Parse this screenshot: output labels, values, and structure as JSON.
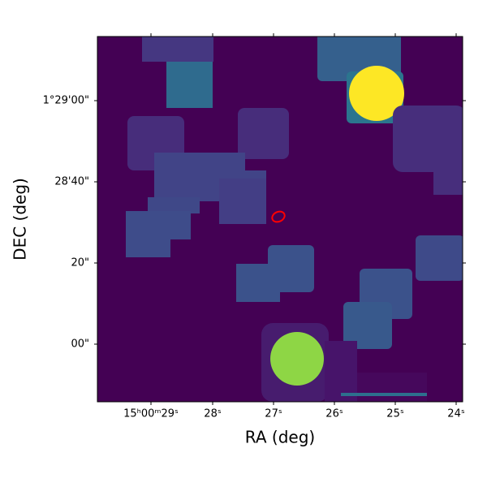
{
  "chart_data": {
    "type": "image",
    "xlabel": "RA (deg)",
    "ylabel": "DEC (deg)",
    "xticks": [
      "15ʰ00ᵐ29ˢ",
      "28ˢ",
      "27ˢ",
      "26ˢ",
      "25ˢ",
      "24ˢ"
    ],
    "yticks": [
      "1°29'00\"",
      "28'40\"",
      "20\"",
      "00\""
    ]
  }
}
